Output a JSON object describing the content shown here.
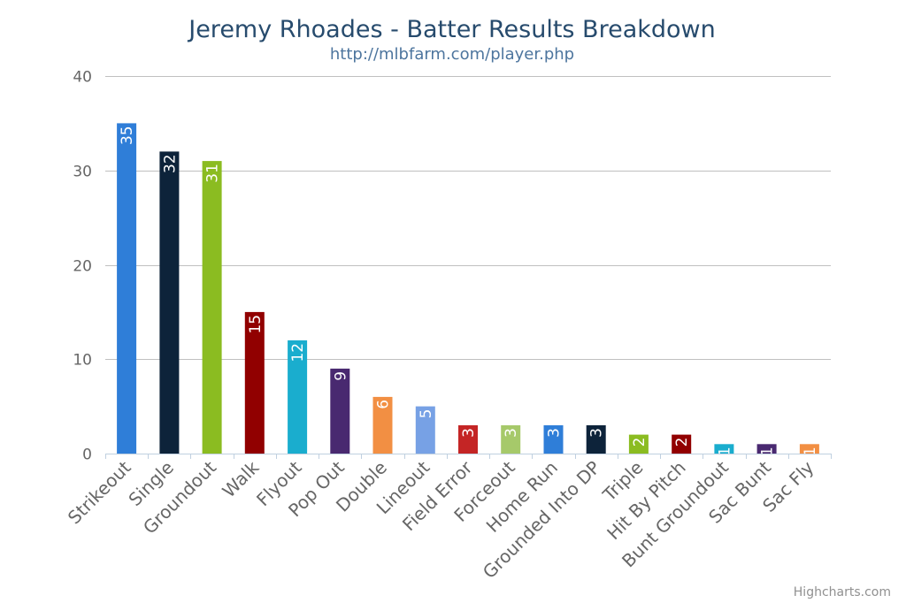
{
  "chart_data": {
    "type": "bar",
    "title": "Jeremy Rhoades - Batter Results Breakdown",
    "subtitle": "http://mlbfarm.com/player.php",
    "xlabel": "",
    "ylabel": "",
    "ylim": [
      0,
      40
    ],
    "yticks": [
      0,
      10,
      20,
      30,
      40
    ],
    "grid": true,
    "legend": "none",
    "categories": [
      "Strikeout",
      "Single",
      "Groundout",
      "Walk",
      "Flyout",
      "Pop Out",
      "Double",
      "Lineout",
      "Field Error",
      "Forceout",
      "Home Run",
      "Grounded Into DP",
      "Triple",
      "Hit By Pitch",
      "Bunt Groundout",
      "Sac Bunt",
      "Sac Fly"
    ],
    "values": [
      35,
      32,
      31,
      15,
      12,
      9,
      6,
      5,
      3,
      3,
      3,
      3,
      2,
      2,
      1,
      1,
      1
    ],
    "colors": [
      "#2f7ed8",
      "#0d233a",
      "#8bbc21",
      "#910000",
      "#1aadce",
      "#492970",
      "#f28f43",
      "#77a1e5",
      "#c42525",
      "#a6c96a",
      "#2f7ed8",
      "#0d233a",
      "#8bbc21",
      "#910000",
      "#1aadce",
      "#492970",
      "#f28f43"
    ]
  },
  "credits": "Highcharts.com"
}
